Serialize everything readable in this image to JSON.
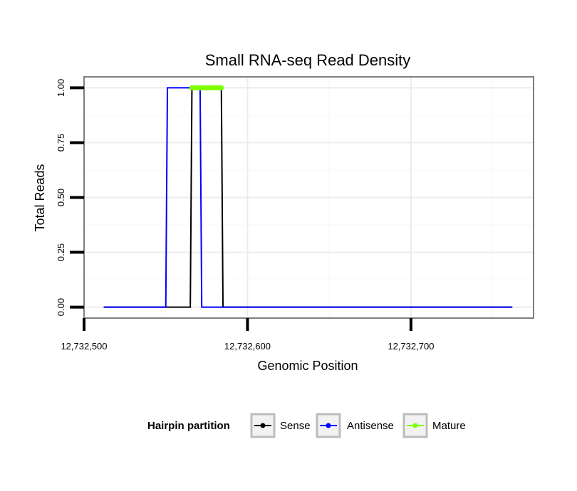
{
  "chart_data": {
    "type": "line",
    "title": "Small RNA-seq Read Density",
    "xlabel": "Genomic Position",
    "ylabel": "Total Reads",
    "xlim": [
      12732500,
      12732775
    ],
    "ylim": [
      -0.05,
      1.05
    ],
    "x_ticks": [
      12732500,
      12732600,
      12732700
    ],
    "x_tick_labels": [
      "12,732,500",
      "12,732,600",
      "12,732,700"
    ],
    "y_ticks": [
      0,
      0.25,
      0.5,
      0.75,
      1.0
    ],
    "y_tick_labels": [
      "0.00",
      "0.25",
      "0.50",
      "0.75",
      "1.00"
    ],
    "grid": true,
    "legend": {
      "position": "bottom",
      "title": "Hairpin partition",
      "entries": [
        "Sense",
        "Antisense",
        "Mature"
      ]
    },
    "series": [
      {
        "name": "Sense",
        "color": "#000000",
        "x": [
          12732512,
          12732565,
          12732566,
          12732584,
          12732585,
          12732762
        ],
        "y": [
          0,
          0,
          1,
          1,
          0,
          0
        ]
      },
      {
        "name": "Antisense",
        "color": "#0000ff",
        "x": [
          12732512,
          12732550,
          12732551,
          12732571,
          12732572,
          12732762
        ],
        "y": [
          0,
          0,
          1,
          1,
          0,
          0
        ]
      },
      {
        "name": "Mature",
        "color": "#7fff00",
        "x": [
          12732566,
          12732584
        ],
        "y": [
          1,
          1
        ]
      }
    ]
  }
}
